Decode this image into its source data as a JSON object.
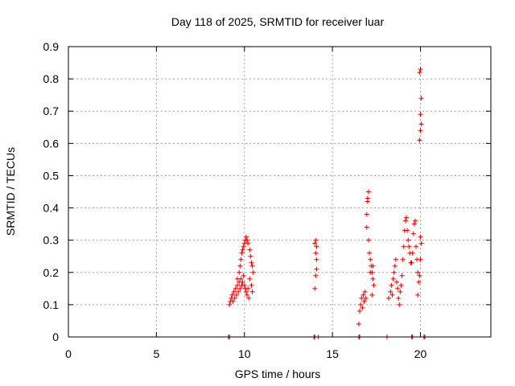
{
  "chart_data": {
    "type": "scatter",
    "title": "Day 118 of 2025, SRMTID for receiver luar",
    "xlabel": "GPS time / hours",
    "ylabel": "SRMTID / TECUs",
    "xlim": [
      0,
      24
    ],
    "ylim": [
      0,
      0.9
    ],
    "x_ticks": [
      0,
      5,
      10,
      15,
      20
    ],
    "x_tick_labels": [
      "0",
      "5",
      "10",
      "15",
      "20"
    ],
    "y_ticks": [
      0,
      0.1,
      0.2,
      0.3,
      0.4,
      0.5,
      0.6,
      0.7,
      0.8,
      0.9
    ],
    "y_tick_labels": [
      "0",
      "0.1",
      "0.2",
      "0.3",
      "0.4",
      "0.5",
      "0.6",
      "0.7",
      "0.8",
      "0.9"
    ],
    "grid": true,
    "marker": "+",
    "color": "#e00000",
    "series": [
      {
        "points": [
          [
            9.1,
            0
          ],
          [
            9.15,
            0
          ],
          [
            13.95,
            0
          ],
          [
            14.0,
            0
          ],
          [
            14.2,
            0
          ],
          [
            16.5,
            0
          ],
          [
            16.55,
            0
          ],
          [
            18.1,
            0
          ],
          [
            19.5,
            0
          ],
          [
            19.55,
            0
          ],
          [
            20.2,
            0
          ],
          [
            20.25,
            0
          ],
          [
            9.15,
            0.1
          ],
          [
            9.2,
            0.11
          ],
          [
            9.25,
            0.12
          ],
          [
            9.3,
            0.13
          ],
          [
            9.35,
            0.11
          ],
          [
            9.4,
            0.14
          ],
          [
            9.45,
            0.12
          ],
          [
            9.5,
            0.15
          ],
          [
            9.55,
            0.13
          ],
          [
            9.6,
            0.16
          ],
          [
            9.65,
            0.14
          ],
          [
            9.7,
            0.17
          ],
          [
            9.75,
            0.15
          ],
          [
            9.8,
            0.18
          ],
          [
            9.85,
            0.16
          ],
          [
            9.9,
            0.17
          ],
          [
            9.95,
            0.19
          ],
          [
            10.0,
            0.16
          ],
          [
            10.05,
            0.15
          ],
          [
            10.1,
            0.14
          ],
          [
            10.15,
            0.13
          ],
          [
            10.2,
            0.15
          ],
          [
            10.25,
            0.12
          ],
          [
            9.6,
            0.18
          ],
          [
            9.7,
            0.2
          ],
          [
            9.75,
            0.22
          ],
          [
            9.8,
            0.24
          ],
          [
            9.85,
            0.26
          ],
          [
            9.9,
            0.27
          ],
          [
            9.95,
            0.28
          ],
          [
            10.0,
            0.29
          ],
          [
            10.05,
            0.3
          ],
          [
            10.1,
            0.31
          ],
          [
            10.15,
            0.3
          ],
          [
            10.2,
            0.29
          ],
          [
            10.3,
            0.27
          ],
          [
            10.35,
            0.25
          ],
          [
            10.4,
            0.23
          ],
          [
            10.45,
            0.22
          ],
          [
            10.5,
            0.2
          ],
          [
            10.3,
            0.18
          ],
          [
            10.4,
            0.16
          ],
          [
            10.45,
            0.14
          ],
          [
            14.0,
            0.15
          ],
          [
            14.05,
            0.19
          ],
          [
            14.1,
            0.21
          ],
          [
            14.1,
            0.24
          ],
          [
            14.05,
            0.26
          ],
          [
            14.1,
            0.28
          ],
          [
            14.0,
            0.29
          ],
          [
            14.05,
            0.3
          ],
          [
            16.5,
            0.04
          ],
          [
            16.55,
            0.08
          ],
          [
            16.6,
            0.1
          ],
          [
            16.65,
            0.12
          ],
          [
            16.7,
            0.09
          ],
          [
            16.75,
            0.13
          ],
          [
            16.8,
            0.11
          ],
          [
            16.85,
            0.14
          ],
          [
            16.9,
            0.12
          ],
          [
            16.95,
            0.38
          ],
          [
            17.0,
            0.43
          ],
          [
            17.05,
            0.45
          ],
          [
            17.0,
            0.42
          ],
          [
            16.95,
            0.34
          ],
          [
            17.05,
            0.3
          ],
          [
            17.1,
            0.26
          ],
          [
            17.15,
            0.24
          ],
          [
            17.2,
            0.22
          ],
          [
            17.25,
            0.2
          ],
          [
            17.3,
            0.18
          ],
          [
            17.35,
            0.16
          ],
          [
            17.25,
            0.13
          ],
          [
            17.3,
            0.22
          ],
          [
            17.15,
            0.2
          ],
          [
            18.2,
            0.12
          ],
          [
            18.3,
            0.14
          ],
          [
            18.35,
            0.16
          ],
          [
            18.4,
            0.13
          ],
          [
            18.45,
            0.18
          ],
          [
            18.5,
            0.2
          ],
          [
            18.55,
            0.22
          ],
          [
            18.6,
            0.24
          ],
          [
            18.65,
            0.17
          ],
          [
            18.7,
            0.15
          ],
          [
            18.75,
            0.12
          ],
          [
            18.8,
            0.1
          ],
          [
            18.85,
            0.14
          ],
          [
            18.9,
            0.16
          ],
          [
            18.95,
            0.19
          ],
          [
            19.0,
            0.24
          ],
          [
            19.05,
            0.28
          ],
          [
            19.1,
            0.33
          ],
          [
            19.15,
            0.36
          ],
          [
            19.2,
            0.37
          ],
          [
            19.25,
            0.33
          ],
          [
            19.3,
            0.3
          ],
          [
            19.35,
            0.28
          ],
          [
            19.4,
            0.26
          ],
          [
            19.45,
            0.23
          ],
          [
            19.5,
            0.23
          ],
          [
            19.55,
            0.26
          ],
          [
            19.6,
            0.32
          ],
          [
            19.65,
            0.35
          ],
          [
            19.7,
            0.36
          ],
          [
            19.75,
            0.28
          ],
          [
            19.8,
            0.24
          ],
          [
            19.85,
            0.2
          ],
          [
            19.9,
            0.17
          ],
          [
            19.95,
            0.19
          ],
          [
            20.0,
            0.24
          ],
          [
            20.05,
            0.29
          ],
          [
            20.0,
            0.31
          ],
          [
            19.85,
            0.13
          ],
          [
            19.95,
            0.61
          ],
          [
            20.0,
            0.64
          ],
          [
            20.05,
            0.66
          ],
          [
            20.0,
            0.69
          ],
          [
            20.05,
            0.74
          ],
          [
            19.95,
            0.82
          ],
          [
            20.0,
            0.83
          ]
        ]
      }
    ]
  }
}
